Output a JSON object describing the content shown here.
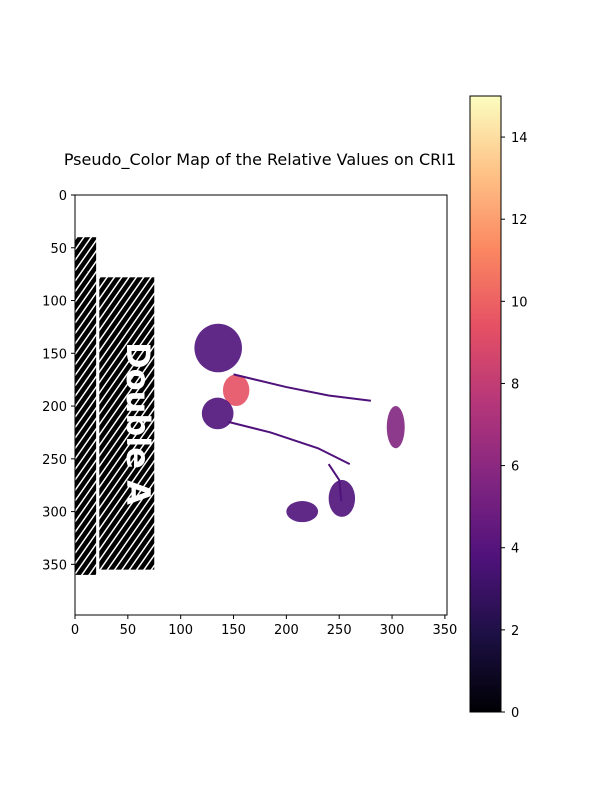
{
  "chart_data": {
    "type": "heatmap",
    "title": "Pseudo_Color Map of the Relative Values on CRI1",
    "xlabel": "",
    "ylabel": "",
    "x_ticks": [
      0,
      50,
      100,
      150,
      200,
      250,
      300,
      350
    ],
    "y_ticks": [
      0,
      50,
      100,
      150,
      200,
      250,
      300,
      350
    ],
    "xlim": [
      0,
      352
    ],
    "ylim": [
      398,
      0
    ],
    "colormap": "magma",
    "colorbar": {
      "range": [
        0,
        15
      ],
      "ticks": [
        0,
        2,
        4,
        6,
        8,
        10,
        12,
        14
      ],
      "colors": [
        "#000004",
        "#1c1044",
        "#4f127b",
        "#812581",
        "#b5367a",
        "#e55064",
        "#fb8761",
        "#fec287",
        "#fcfdbf"
      ]
    },
    "background_color": "#ffffff",
    "image_text": "Double A",
    "regions": [
      {
        "name": "left-strip",
        "value": 0,
        "x": [
          0,
          20
        ],
        "y": [
          40,
          360
        ]
      },
      {
        "name": "double-a-panel",
        "value": 0,
        "x": [
          23,
          75
        ],
        "y": [
          78,
          355
        ]
      },
      {
        "name": "leaf-top",
        "value": 4,
        "x": [
          113,
          158
        ],
        "y": [
          122,
          168
        ]
      },
      {
        "name": "leaf-center",
        "value": 9,
        "x": [
          140,
          165
        ],
        "y": [
          170,
          200
        ]
      },
      {
        "name": "leaf-cluster-left",
        "value": 4,
        "x": [
          120,
          150
        ],
        "y": [
          192,
          222
        ]
      },
      {
        "name": "leaf-right",
        "value": 4,
        "x": [
          240,
          265
        ],
        "y": [
          270,
          305
        ]
      },
      {
        "name": "leaf-bottom",
        "value": 4,
        "x": [
          200,
          230
        ],
        "y": [
          290,
          310
        ]
      },
      {
        "name": "leaf-far-right",
        "value": 5,
        "x": [
          295,
          312
        ],
        "y": [
          200,
          240
        ]
      }
    ]
  }
}
